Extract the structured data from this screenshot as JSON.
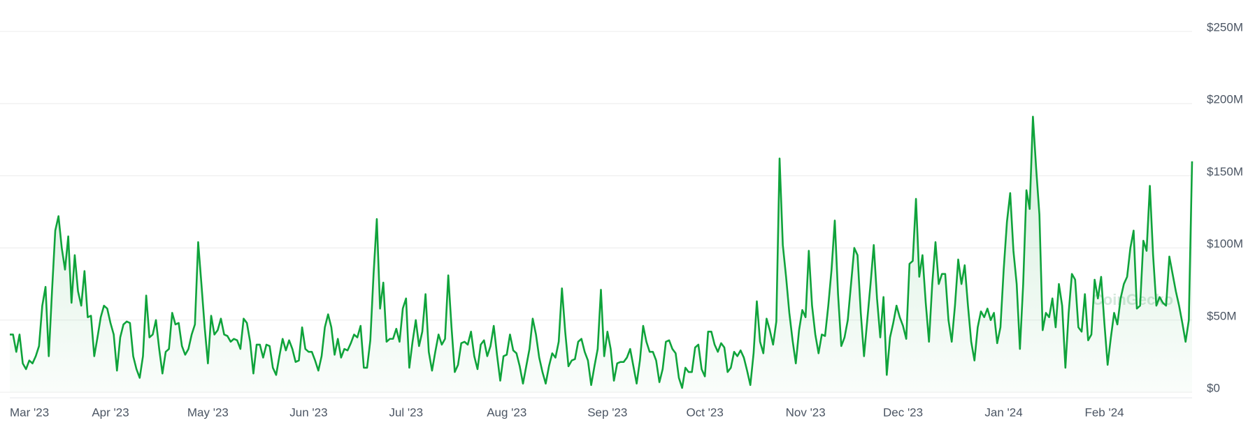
{
  "chart_data": {
    "type": "area-line",
    "color": "#0fa33b",
    "watermark": "CoinGecko",
    "grid": true,
    "ylim": [
      0,
      250
    ],
    "yticks": [
      {
        "value": 0,
        "label": "$0"
      },
      {
        "value": 50,
        "label": "$50M"
      },
      {
        "value": 100,
        "label": "$100M"
      },
      {
        "value": 150,
        "label": "$150M"
      },
      {
        "value": 200,
        "label": "$200M"
      },
      {
        "value": 250,
        "label": "$250M"
      }
    ],
    "categories": [
      "Mar '23",
      null,
      null,
      null,
      null,
      null,
      null,
      null,
      null,
      null,
      null,
      null,
      null,
      null,
      null,
      null,
      null,
      null,
      null,
      null,
      null,
      null,
      null,
      null,
      null,
      null,
      null,
      null,
      null,
      null,
      null,
      "Apr '23",
      null,
      null,
      null,
      null,
      null,
      null,
      null,
      null,
      null,
      null,
      null,
      null,
      null,
      null,
      null,
      null,
      null,
      null,
      null,
      null,
      null,
      null,
      null,
      null,
      null,
      null,
      null,
      null,
      null,
      "May '23",
      null,
      null,
      null,
      null,
      null,
      null,
      null,
      null,
      null,
      null,
      null,
      null,
      null,
      null,
      null,
      null,
      null,
      null,
      null,
      null,
      null,
      null,
      null,
      null,
      null,
      null,
      null,
      null,
      null,
      null,
      "Jun '23",
      null,
      null,
      null,
      null,
      null,
      null,
      null,
      null,
      null,
      null,
      null,
      null,
      null,
      null,
      null,
      null,
      null,
      null,
      null,
      null,
      null,
      null,
      null,
      null,
      null,
      null,
      null,
      null,
      null,
      "Jul '23",
      null,
      null,
      null,
      null,
      null,
      null,
      null,
      null,
      null,
      null,
      null,
      null,
      null,
      null,
      null,
      null,
      null,
      null,
      null,
      null,
      null,
      null,
      null,
      null,
      null,
      null,
      null,
      null,
      null,
      null,
      "Aug '23",
      null,
      null,
      null,
      null,
      null,
      null,
      null,
      null,
      null,
      null,
      null,
      null,
      null,
      null,
      null,
      null,
      null,
      null,
      null,
      null,
      null,
      null,
      null,
      null,
      null,
      null,
      null,
      null,
      null,
      null,
      "Sep '23",
      null,
      null,
      null,
      null,
      null,
      null,
      null,
      null,
      null,
      null,
      null,
      null,
      null,
      null,
      null,
      null,
      null,
      null,
      null,
      null,
      null,
      null,
      null,
      null,
      null,
      null,
      null,
      null,
      null,
      "Oct '23",
      null,
      null,
      null,
      null,
      null,
      null,
      null,
      null,
      null,
      null,
      null,
      null,
      null,
      null,
      null,
      null,
      null,
      null,
      null,
      null,
      null,
      null,
      null,
      null,
      null,
      null,
      null,
      null,
      null,
      null,
      "Nov '23",
      null,
      null,
      null,
      null,
      null,
      null,
      null,
      null,
      null,
      null,
      null,
      null,
      null,
      null,
      null,
      null,
      null,
      null,
      null,
      null,
      null,
      null,
      null,
      null,
      null,
      null,
      null,
      null,
      null,
      "Dec '23",
      null,
      null,
      null,
      null,
      null,
      null,
      null,
      null,
      null,
      null,
      null,
      null,
      null,
      null,
      null,
      null,
      null,
      null,
      null,
      null,
      null,
      null,
      null,
      null,
      null,
      null,
      null,
      null,
      null,
      null,
      "Jan '24",
      null,
      null,
      null,
      null,
      null,
      null,
      null,
      null,
      null,
      null,
      null,
      null,
      null,
      null,
      null,
      null,
      null,
      null,
      null,
      null,
      null,
      null,
      null,
      null,
      null,
      null,
      null,
      null,
      null,
      null,
      "Feb '24",
      null,
      null,
      null,
      null,
      null,
      null,
      null,
      null,
      null,
      null,
      null,
      null,
      null,
      null,
      null,
      null,
      null,
      null,
      null,
      null,
      null,
      null,
      null,
      null,
      null,
      null,
      null
    ],
    "values": [
      40,
      40,
      28,
      40,
      20,
      16,
      22,
      20,
      25,
      32,
      60,
      73,
      25,
      70,
      112,
      122,
      100,
      85,
      108,
      62,
      95,
      70,
      60,
      84,
      52,
      53,
      25,
      38,
      52,
      60,
      58,
      48,
      40,
      15,
      38,
      47,
      49,
      48,
      25,
      16,
      10,
      25,
      67,
      38,
      40,
      50,
      30,
      13,
      28,
      30,
      55,
      47,
      48,
      32,
      26,
      30,
      40,
      47,
      104,
      75,
      45,
      20,
      53,
      40,
      43,
      51,
      40,
      39,
      35,
      37,
      36,
      30,
      51,
      48,
      35,
      13,
      33,
      33,
      24,
      33,
      32,
      17,
      12,
      25,
      37,
      29,
      36,
      30,
      21,
      22,
      45,
      30,
      28,
      28,
      22,
      15,
      25,
      45,
      54,
      45,
      26,
      37,
      24,
      30,
      29,
      34,
      40,
      38,
      46,
      17,
      17,
      36,
      82,
      120,
      58,
      76,
      35,
      37,
      37,
      44,
      35,
      58,
      65,
      17,
      35,
      50,
      32,
      42,
      68,
      28,
      15,
      28,
      40,
      33,
      37,
      81,
      45,
      14,
      19,
      34,
      35,
      33,
      42,
      25,
      16,
      33,
      36,
      25,
      32,
      46,
      26,
      8,
      25,
      26,
      40,
      29,
      27,
      18,
      6,
      18,
      30,
      51,
      40,
      24,
      14,
      6,
      18,
      27,
      24,
      35,
      72,
      42,
      18,
      22,
      23,
      35,
      37,
      28,
      22,
      5,
      18,
      30,
      71,
      25,
      42,
      30,
      8,
      20,
      21,
      21,
      24,
      30,
      18,
      6,
      22,
      46,
      35,
      28,
      28,
      22,
      7,
      16,
      35,
      36,
      30,
      27,
      10,
      3,
      17,
      14,
      14,
      31,
      33,
      16,
      11,
      42,
      42,
      33,
      28,
      34,
      31,
      14,
      17,
      28,
      25,
      29,
      24,
      15,
      5,
      27,
      63,
      35,
      27,
      51,
      43,
      33,
      49,
      162,
      102,
      80,
      55,
      36,
      20,
      43,
      57,
      52,
      98,
      60,
      40,
      27,
      40,
      39,
      60,
      85,
      119,
      68,
      32,
      38,
      50,
      75,
      100,
      95,
      55,
      25,
      50,
      75,
      102,
      65,
      38,
      66,
      12,
      38,
      48,
      60,
      52,
      46,
      37,
      89,
      91,
      134,
      80,
      95,
      62,
      35,
      75,
      104,
      75,
      82,
      82,
      50,
      35,
      60,
      92,
      75,
      88,
      60,
      35,
      22,
      45,
      56,
      52,
      58,
      50,
      55,
      34,
      45,
      85,
      118,
      138,
      98,
      75,
      30,
      75,
      140,
      127,
      191,
      155,
      123,
      43,
      55,
      52,
      65,
      45,
      75,
      60,
      17,
      55,
      82,
      78,
      45,
      42,
      68,
      36,
      40,
      78,
      65,
      80,
      48,
      19,
      38,
      55,
      47,
      65,
      75,
      80,
      100,
      112,
      58,
      60,
      105,
      98,
      143,
      95,
      60,
      66,
      62,
      60,
      94,
      82,
      70,
      60,
      48,
      35,
      50,
      160
    ]
  }
}
